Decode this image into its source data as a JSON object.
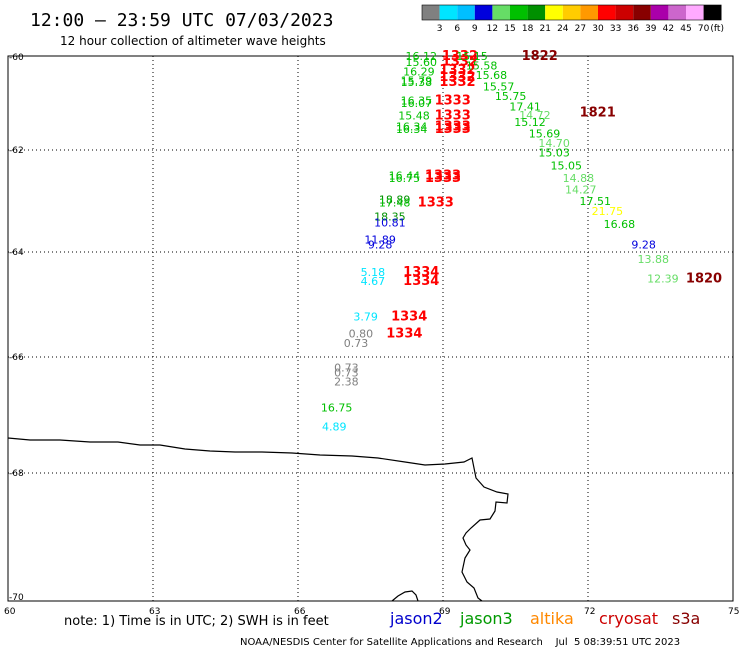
{
  "header": {
    "title": "12:00 – 23:59 UTC 07/03/2023",
    "subtitle": "12 hour collection of altimeter wave heights"
  },
  "legend": {
    "labels": [
      "3",
      "6",
      "9",
      "12",
      "15",
      "18",
      "21",
      "24",
      "27",
      "30",
      "33",
      "36",
      "39",
      "42",
      "45",
      "70"
    ],
    "unit": "(ft)",
    "colors": [
      "#808080",
      "#00e5ff",
      "#00bfff",
      "#0000dd",
      "#66dd66",
      "#00c000",
      "#009000",
      "#ffff00",
      "#ffcc00",
      "#ff9900",
      "#ff0000",
      "#cc0000",
      "#880000",
      "#aa00aa",
      "#cc66cc",
      "#ffaaff",
      "#000000"
    ]
  },
  "axes": {
    "lat_labels": [
      "-60",
      "-62",
      "-64",
      "-66",
      "-68",
      "-70"
    ],
    "lon_labels": [
      "60",
      "63",
      "66",
      "69",
      "72",
      "75"
    ]
  },
  "footer": {
    "note": "note: 1) Time is in UTC; 2) SWH is in feet",
    "satellites": [
      {
        "name": "jason2",
        "color": "#0000cc"
      },
      {
        "name": "jason3",
        "color": "#009900"
      },
      {
        "name": "altika",
        "color": "#ff8800"
      },
      {
        "name": "cryosat",
        "color": "#cc0000"
      },
      {
        "name": "s3a",
        "color": "#880000"
      }
    ],
    "credit": "NOAA/NESDIS Center for Satellite Applications and Research    Jul  5 08:39:51 UTC 2023"
  },
  "map_data": {
    "observations": [
      {
        "v": "16.12",
        "lon": 68.55,
        "lat": -60.0,
        "c": "#00c000"
      },
      {
        "v": "15.60",
        "lon": 68.55,
        "lat": -60.13,
        "c": "#00c000"
      },
      {
        "v": "16.29",
        "lon": 68.5,
        "lat": -60.33,
        "c": "#00c000"
      },
      {
        "v": "15.79",
        "lon": 68.45,
        "lat": -60.52,
        "c": "#00c000"
      },
      {
        "v": "15.38",
        "lon": 68.45,
        "lat": -60.55,
        "c": "#00c000"
      },
      {
        "v": "16.35",
        "lon": 68.45,
        "lat": -60.95,
        "c": "#00c000"
      },
      {
        "v": "16.07",
        "lon": 68.45,
        "lat": -61.0,
        "c": "#00c000"
      },
      {
        "v": "15.48",
        "lon": 68.4,
        "lat": -61.27,
        "c": "#00c000"
      },
      {
        "v": "16.34",
        "lon": 68.35,
        "lat": -61.5,
        "c": "#00c000"
      },
      {
        "v": "16.34",
        "lon": 68.35,
        "lat": -61.55,
        "c": "#00c000"
      },
      {
        "v": "16.44",
        "lon": 68.2,
        "lat": -62.5,
        "c": "#00c000"
      },
      {
        "v": "16.75",
        "lon": 68.2,
        "lat": -62.55,
        "c": "#00c000"
      },
      {
        "v": "18.89",
        "lon": 68.0,
        "lat": -62.97,
        "c": "#009000"
      },
      {
        "v": "17.48",
        "lon": 68.0,
        "lat": -63.03,
        "c": "#00c000"
      },
      {
        "v": "18.35",
        "lon": 67.9,
        "lat": -63.3,
        "c": "#009000"
      },
      {
        "v": "10.81",
        "lon": 67.9,
        "lat": -63.42,
        "c": "#0000dd"
      },
      {
        "v": "11.89",
        "lon": 67.7,
        "lat": -63.75,
        "c": "#0000dd"
      },
      {
        "v": "9.28",
        "lon": 67.7,
        "lat": -63.85,
        "c": "#0000dd"
      },
      {
        "v": "5.18",
        "lon": 67.55,
        "lat": -64.38,
        "c": "#00e5ff"
      },
      {
        "v": "4.67",
        "lon": 67.55,
        "lat": -64.55,
        "c": "#00e5ff"
      },
      {
        "v": "3.79",
        "lon": 67.4,
        "lat": -65.23,
        "c": "#00e5ff"
      },
      {
        "v": "0.80",
        "lon": 67.3,
        "lat": -65.55,
        "c": "#808080"
      },
      {
        "v": "0.73",
        "lon": 67.2,
        "lat": -65.73,
        "c": "#808080"
      },
      {
        "v": "0.73",
        "lon": 67.0,
        "lat": -66.18,
        "c": "#808080"
      },
      {
        "v": "0.73",
        "lon": 67.0,
        "lat": -66.27,
        "c": "#808080"
      },
      {
        "v": "2.38",
        "lon": 67.0,
        "lat": -66.42,
        "c": "#808080"
      },
      {
        "v": "16.75",
        "lon": 66.8,
        "lat": -66.87,
        "c": "#00c000"
      },
      {
        "v": "4.89",
        "lon": 66.75,
        "lat": -67.2,
        "c": "#00e5ff"
      },
      {
        "v": "1332",
        "lon": 69.35,
        "lat": -60.0,
        "c": "#ff0000",
        "b": true
      },
      {
        "v": "1332",
        "lon": 69.35,
        "lat": -60.12,
        "c": "#ff0000",
        "b": true
      },
      {
        "v": "1332",
        "lon": 69.3,
        "lat": -60.3,
        "c": "#ff0000",
        "b": true
      },
      {
        "v": "1332",
        "lon": 69.3,
        "lat": -60.45,
        "c": "#ff0000",
        "b": true
      },
      {
        "v": "1332",
        "lon": 69.3,
        "lat": -60.55,
        "c": "#ff0000",
        "b": true
      },
      {
        "v": "1333",
        "lon": 69.2,
        "lat": -60.95,
        "c": "#ff0000",
        "b": true
      },
      {
        "v": "1333",
        "lon": 69.2,
        "lat": -61.27,
        "c": "#ff0000",
        "b": true
      },
      {
        "v": "1333",
        "lon": 69.2,
        "lat": -61.5,
        "c": "#ff0000",
        "b": true
      },
      {
        "v": "1333",
        "lon": 69.2,
        "lat": -61.55,
        "c": "#ff0000",
        "b": true
      },
      {
        "v": "1333",
        "lon": 69.0,
        "lat": -62.5,
        "c": "#ff0000",
        "b": true
      },
      {
        "v": "1333",
        "lon": 69.0,
        "lat": -62.55,
        "c": "#ff0000",
        "b": true
      },
      {
        "v": "1333",
        "lon": 68.85,
        "lat": -63.03,
        "c": "#ff0000",
        "b": true
      },
      {
        "v": "1334",
        "lon": 68.55,
        "lat": -64.38,
        "c": "#ff0000",
        "b": true
      },
      {
        "v": "1334",
        "lon": 68.55,
        "lat": -64.55,
        "c": "#ff0000",
        "b": true
      },
      {
        "v": "1334",
        "lon": 68.3,
        "lat": -65.23,
        "c": "#ff0000",
        "b": true
      },
      {
        "v": "1334",
        "lon": 68.2,
        "lat": -65.55,
        "c": "#ff0000",
        "b": true
      },
      {
        "v": "1822",
        "lon": 71.0,
        "lat": -60.0,
        "c": "#880000",
        "b": true
      },
      {
        "v": "1821",
        "lon": 72.2,
        "lat": -61.2,
        "c": "#880000",
        "b": true
      },
      {
        "v": "1820",
        "lon": 74.4,
        "lat": -64.5,
        "c": "#880000",
        "b": true
      },
      {
        "v": "15.15",
        "lon": 69.6,
        "lat": -60.0,
        "c": "#00c000"
      },
      {
        "v": "15.58",
        "lon": 69.8,
        "lat": -60.2,
        "c": "#00c000"
      },
      {
        "v": "15.68",
        "lon": 70.0,
        "lat": -60.4,
        "c": "#00c000"
      },
      {
        "v": "15.57",
        "lon": 70.15,
        "lat": -60.65,
        "c": "#00c000"
      },
      {
        "v": "15.75",
        "lon": 70.4,
        "lat": -60.85,
        "c": "#00c000"
      },
      {
        "v": "17.41",
        "lon": 70.7,
        "lat": -61.07,
        "c": "#00c000"
      },
      {
        "v": "14.72",
        "lon": 70.9,
        "lat": -61.25,
        "c": "#66dd66"
      },
      {
        "v": "15.12",
        "lon": 70.8,
        "lat": -61.4,
        "c": "#00c000"
      },
      {
        "v": "15.69",
        "lon": 71.1,
        "lat": -61.65,
        "c": "#00c000"
      },
      {
        "v": "14.70",
        "lon": 71.3,
        "lat": -61.85,
        "c": "#66dd66"
      },
      {
        "v": "15.03",
        "lon": 71.3,
        "lat": -62.05,
        "c": "#00c000"
      },
      {
        "v": "15.05",
        "lon": 71.55,
        "lat": -62.3,
        "c": "#00c000"
      },
      {
        "v": "14.88",
        "lon": 71.8,
        "lat": -62.55,
        "c": "#66dd66"
      },
      {
        "v": "14.27",
        "lon": 71.85,
        "lat": -62.77,
        "c": "#66dd66"
      },
      {
        "v": "17.51",
        "lon": 72.15,
        "lat": -63.0,
        "c": "#00c000"
      },
      {
        "v": "21.75",
        "lon": 72.4,
        "lat": -63.2,
        "c": "#ffff00"
      },
      {
        "v": "16.68",
        "lon": 72.65,
        "lat": -63.45,
        "c": "#00c000"
      },
      {
        "v": "9.28",
        "lon": 73.15,
        "lat": -63.85,
        "c": "#0000dd"
      },
      {
        "v": "13.88",
        "lon": 73.35,
        "lat": -64.13,
        "c": "#66dd66"
      },
      {
        "v": "12.39",
        "lon": 73.55,
        "lat": -64.5,
        "c": "#66dd66"
      }
    ]
  }
}
